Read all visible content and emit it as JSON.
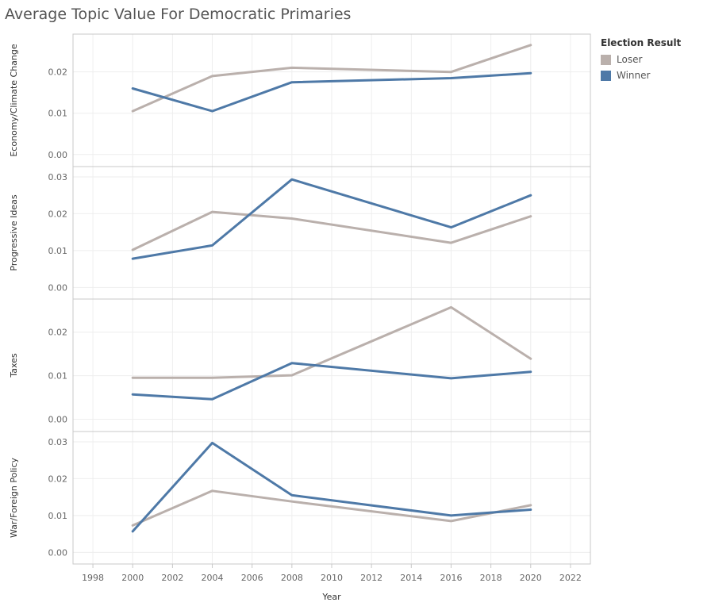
{
  "title": "Average Topic Value For Democratic Primaries",
  "legend": {
    "title": "Election Result",
    "items": [
      {
        "label": "Loser",
        "color": "#bab0ac"
      },
      {
        "label": "Winner",
        "color": "#4e79a7"
      }
    ]
  },
  "chart_data": {
    "type": "line",
    "title": "Average Topic Value For Democratic Primaries",
    "xlabel": "Year",
    "x_ticks": [
      "1998",
      "2000",
      "2002",
      "2004",
      "2006",
      "2008",
      "2010",
      "2012",
      "2014",
      "2016",
      "2018",
      "2020",
      "2022"
    ],
    "xlim": [
      1997,
      2023
    ],
    "x": [
      2000,
      2004,
      2008,
      2016,
      2020
    ],
    "grid": true,
    "legend_position": "top-right",
    "panels": [
      {
        "ylabel": "Economy/Climate Change",
        "ylim": [
          -0.001,
          0.028
        ],
        "y_ticks": [
          "0.00",
          "0.01",
          "0.02"
        ],
        "series": [
          {
            "name": "Loser",
            "values": [
              0.0105,
              0.019,
              0.021,
              0.02,
              0.0265
            ]
          },
          {
            "name": "Winner",
            "values": [
              0.016,
              0.0105,
              0.0175,
              0.0185,
              0.0197
            ]
          }
        ]
      },
      {
        "ylabel": "Progressive Ideas",
        "ylim": [
          -0.001,
          0.0315
        ],
        "y_ticks": [
          "0.00",
          "0.01",
          "0.02",
          "0.03"
        ],
        "series": [
          {
            "name": "Loser",
            "values": [
              0.0102,
              0.0205,
              0.0187,
              0.0121,
              0.0193
            ]
          },
          {
            "name": "Winner",
            "values": [
              0.0078,
              0.0114,
              0.0293,
              0.0163,
              0.025
            ]
          }
        ]
      },
      {
        "ylabel": "Taxes",
        "ylim": [
          -0.001,
          0.0265
        ],
        "y_ticks": [
          "0.00",
          "0.01",
          "0.02"
        ],
        "series": [
          {
            "name": "Loser",
            "values": [
              0.0095,
              0.0095,
              0.0101,
              0.0257,
              0.0139
            ]
          },
          {
            "name": "Winner",
            "values": [
              0.0057,
              0.0046,
              0.0129,
              0.0094,
              0.0109
            ]
          }
        ]
      },
      {
        "ylabel": "War/Foreign Policy",
        "ylim": [
          -0.001,
          0.0315
        ],
        "y_ticks": [
          "0.00",
          "0.01",
          "0.02",
          "0.03"
        ],
        "series": [
          {
            "name": "Loser",
            "values": [
              0.0073,
              0.0167,
              0.0138,
              0.0085,
              0.0128
            ]
          },
          {
            "name": "Winner",
            "values": [
              0.0057,
              0.0297,
              0.0155,
              0.01,
              0.0116
            ]
          }
        ]
      }
    ],
    "colors": {
      "Loser": "#bab0ac",
      "Winner": "#4e79a7"
    }
  }
}
